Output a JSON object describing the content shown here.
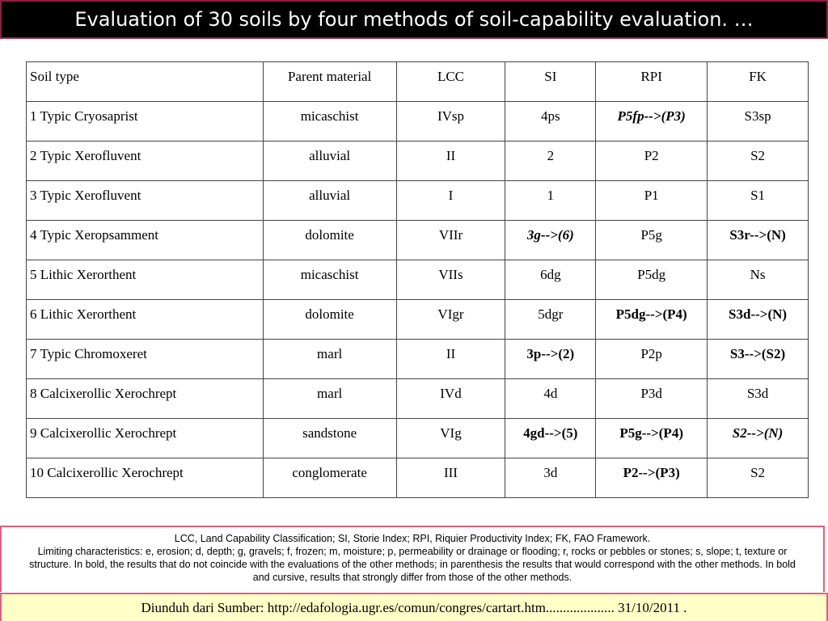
{
  "title": "Evaluation of 30 soils by four methods of soil-capability evaluation. …",
  "table": {
    "header": [
      "Soil type",
      "Parent material",
      "LCC",
      "SI",
      "RPI",
      "FK"
    ],
    "rows": [
      [
        "1 Typic Cryosaprist",
        "micaschist",
        "IVsp",
        "4ps",
        "P5fp-->(P3)",
        "S3sp"
      ],
      [
        "2 Typic Xerofluvent",
        "alluvial",
        "II",
        "2",
        "P2",
        "S2"
      ],
      [
        "3 Typic Xerofluvent",
        "alluvial",
        "I",
        "1",
        "P1",
        "S1"
      ],
      [
        "4 Typic Xeropsamment",
        "dolomite",
        "VIIr",
        "3g-->(6)",
        "P5g",
        "S3r-->(N)"
      ],
      [
        "5 Lithic Xerorthent",
        "micaschist",
        "VIIs",
        "6dg",
        "P5dg",
        "Ns"
      ],
      [
        "6 Lithic Xerorthent",
        "dolomite",
        "VIgr",
        "5dgr",
        "P5dg-->(P4)",
        "S3d-->(N)"
      ],
      [
        "7 Typic Chromoxeret",
        "marl",
        "II",
        "3p-->(2)",
        "P2p",
        "S3-->(S2)"
      ],
      [
        "8 Calcixerollic Xerochrept",
        "marl",
        "IVd",
        "4d",
        "P3d",
        "S3d"
      ],
      [
        "9 Calcixerollic Xerochrept",
        "sandstone",
        "VIg",
        "4gd-->(5)",
        "P5g-->(P4)",
        "S2-->(N)"
      ],
      [
        "10 Calcixerollic Xerochrept",
        "conglomerate",
        "III",
        "3d",
        "P2-->(P3)",
        "S2"
      ]
    ]
  },
  "footnote": {
    "definitions": "LCC, Land Capability Classification; SI, Storie Index; RPI, Riquier Productivity Index; FK, FAO Framework.",
    "limiting": "Limiting characteristics: e, erosion; d, depth; g, gravels; f, frozen; m, moisture; p, permeability or drainage or flooding; r, rocks or pebbles or stones; s, slope; t, texture or structure. In bold, the results that do not coincide with the evaluations of the other methods; in parenthesis the results that would correspond with the other methods. In bold and cursive, results that strongly differ from those of the other methods."
  },
  "source": "Diunduh dari Sumber: http://edafologia.ugr.es/comun/congres/cartart.htm.................... 31/10/2011 ."
}
